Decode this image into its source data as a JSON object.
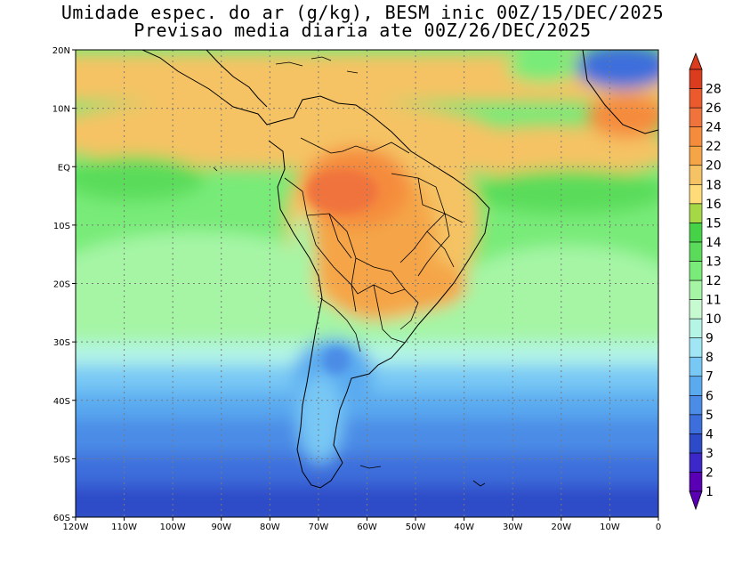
{
  "title": {
    "line1": "Umidade espec. do ar (g/kg), BESM inic 00Z/15/DEC/2025",
    "line2": "Previsao media diaria ate 00Z/26/DEC/2025"
  },
  "map": {
    "lon_range": [
      -120,
      0
    ],
    "lat_range": [
      -60,
      20
    ],
    "lat_ticks": [
      {
        "value": 20,
        "label": "20N"
      },
      {
        "value": 10,
        "label": "10N"
      },
      {
        "value": 0,
        "label": "EQ"
      },
      {
        "value": -10,
        "label": "10S"
      },
      {
        "value": -20,
        "label": "20S"
      },
      {
        "value": -30,
        "label": "30S"
      },
      {
        "value": -40,
        "label": "40S"
      },
      {
        "value": -50,
        "label": "50S"
      },
      {
        "value": -60,
        "label": "60S"
      }
    ],
    "lon_ticks": [
      {
        "value": -120,
        "label": "120W"
      },
      {
        "value": -110,
        "label": "110W"
      },
      {
        "value": -100,
        "label": "100W"
      },
      {
        "value": -90,
        "label": "90W"
      },
      {
        "value": -80,
        "label": "80W"
      },
      {
        "value": -70,
        "label": "70W"
      },
      {
        "value": -60,
        "label": "60W"
      },
      {
        "value": -50,
        "label": "50W"
      },
      {
        "value": -40,
        "label": "40W"
      },
      {
        "value": -30,
        "label": "30W"
      },
      {
        "value": -20,
        "label": "20W"
      },
      {
        "value": -10,
        "label": "10W"
      },
      {
        "value": 0,
        "label": "0"
      }
    ],
    "grid": "dotted"
  },
  "colorbar": {
    "levels": [
      "1",
      "2",
      "3",
      "4",
      "5",
      "6",
      "7",
      "8",
      "9",
      "10",
      "11",
      "12",
      "13",
      "14",
      "15",
      "16",
      "18",
      "20",
      "22",
      "24",
      "26",
      "28"
    ],
    "colors": [
      "#5a00b4",
      "#3c28c8",
      "#2d4bc8",
      "#3c6edc",
      "#4b8ce6",
      "#5aaaf0",
      "#78c8f5",
      "#a0e6f5",
      "#b4f5e6",
      "#c8fad2",
      "#a5f5a5",
      "#78eb78",
      "#5adc5a",
      "#46d246",
      "#a5d746",
      "#ffdc78",
      "#f5c364",
      "#f5a546",
      "#f58c3c",
      "#f0733c",
      "#eb5a2d",
      "#dc3c1e"
    ]
  }
}
